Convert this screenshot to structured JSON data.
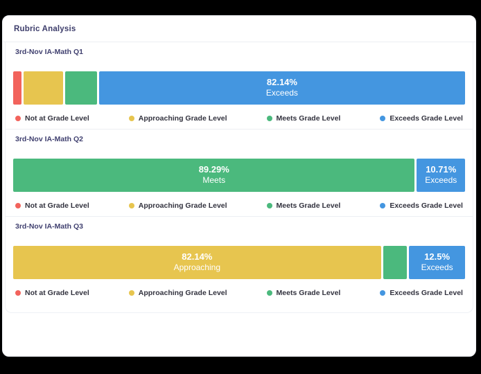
{
  "card": {
    "title": "Rubric Analysis"
  },
  "colors": {
    "not_at_grade_level": "#F2635C",
    "approaching_grade_level": "#E7C54F",
    "meets_grade_level": "#4BB97D",
    "exceeds_grade_level": "#4496E0",
    "heading_text": "#3D3D6B",
    "legend_text": "#32323E",
    "divider": "#ECEFF3",
    "card_background": "#FFFFFF",
    "page_background": "#000000"
  },
  "legend": {
    "items": [
      {
        "label": "Not at Grade Level",
        "color": "#F2635C"
      },
      {
        "label": "Approaching Grade Level",
        "color": "#E7C54F"
      },
      {
        "label": "Meets Grade Level",
        "color": "#4BB97D"
      },
      {
        "label": "Exceeds Grade Level",
        "color": "#4496E0"
      }
    ]
  },
  "sections": [
    {
      "title": "3rd-Nov IA-Math Q1",
      "segments": [
        {
          "name": "Not at Grade Level",
          "pct": 1.79,
          "color": "#F2635C",
          "value_label": "",
          "name_label": ""
        },
        {
          "name": "Approaching Grade Level",
          "pct": 8.93,
          "color": "#E7C54F",
          "value_label": "",
          "name_label": ""
        },
        {
          "name": "Meets Grade Level",
          "pct": 7.14,
          "color": "#4BB97D",
          "value_label": "",
          "name_label": ""
        },
        {
          "name": "Exceeds Grade Level",
          "pct": 82.14,
          "color": "#4496E0",
          "value_label": "82.14%",
          "name_label": "Exceeds"
        }
      ]
    },
    {
      "title": "3rd-Nov IA-Math Q2",
      "segments": [
        {
          "name": "Meets Grade Level",
          "pct": 89.29,
          "color": "#4BB97D",
          "value_label": "89.29%",
          "name_label": "Meets"
        },
        {
          "name": "Exceeds Grade Level",
          "pct": 10.71,
          "color": "#4496E0",
          "value_label": "10.71%",
          "name_label": "Exceeds"
        }
      ]
    },
    {
      "title": "3rd-Nov IA-Math Q3",
      "segments": [
        {
          "name": "Approaching Grade Level",
          "pct": 82.14,
          "color": "#E7C54F",
          "value_label": "82.14%",
          "name_label": "Approaching"
        },
        {
          "name": "Meets Grade Level",
          "pct": 5.36,
          "color": "#4BB97D",
          "value_label": "",
          "name_label": ""
        },
        {
          "name": "Exceeds Grade Level",
          "pct": 12.5,
          "color": "#4496E0",
          "value_label": "12.5%",
          "name_label": "Exceeds"
        }
      ]
    }
  ],
  "chart_data": {
    "type": "bar",
    "variant": "horizontal-stacked-percent",
    "title": "Rubric Analysis",
    "categories": [
      "3rd-Nov IA-Math Q1",
      "3rd-Nov IA-Math Q2",
      "3rd-Nov IA-Math Q3"
    ],
    "series": [
      {
        "name": "Not at Grade Level",
        "color": "#F2635C",
        "values": [
          1.79,
          0,
          0
        ]
      },
      {
        "name": "Approaching Grade Level",
        "color": "#E7C54F",
        "values": [
          8.93,
          0,
          82.14
        ]
      },
      {
        "name": "Meets Grade Level",
        "color": "#4BB97D",
        "values": [
          7.14,
          89.29,
          5.36
        ]
      },
      {
        "name": "Exceeds Grade Level",
        "color": "#4496E0",
        "values": [
          82.14,
          10.71,
          12.5
        ]
      }
    ],
    "unit": "%",
    "xlim": [
      0,
      100
    ],
    "grid": false,
    "legend_position": "below-each-bar",
    "segment_labels": [
      {
        "category": "3rd-Nov IA-Math Q1",
        "value": "82.14%",
        "name": "Exceeds"
      },
      {
        "category": "3rd-Nov IA-Math Q2",
        "value": "89.29%",
        "name": "Meets"
      },
      {
        "category": "3rd-Nov IA-Math Q2",
        "value": "10.71%",
        "name": "Exceeds"
      },
      {
        "category": "3rd-Nov IA-Math Q3",
        "value": "82.14%",
        "name": "Approaching"
      },
      {
        "category": "3rd-Nov IA-Math Q3",
        "value": "12.5%",
        "name": "Exceeds"
      }
    ]
  }
}
